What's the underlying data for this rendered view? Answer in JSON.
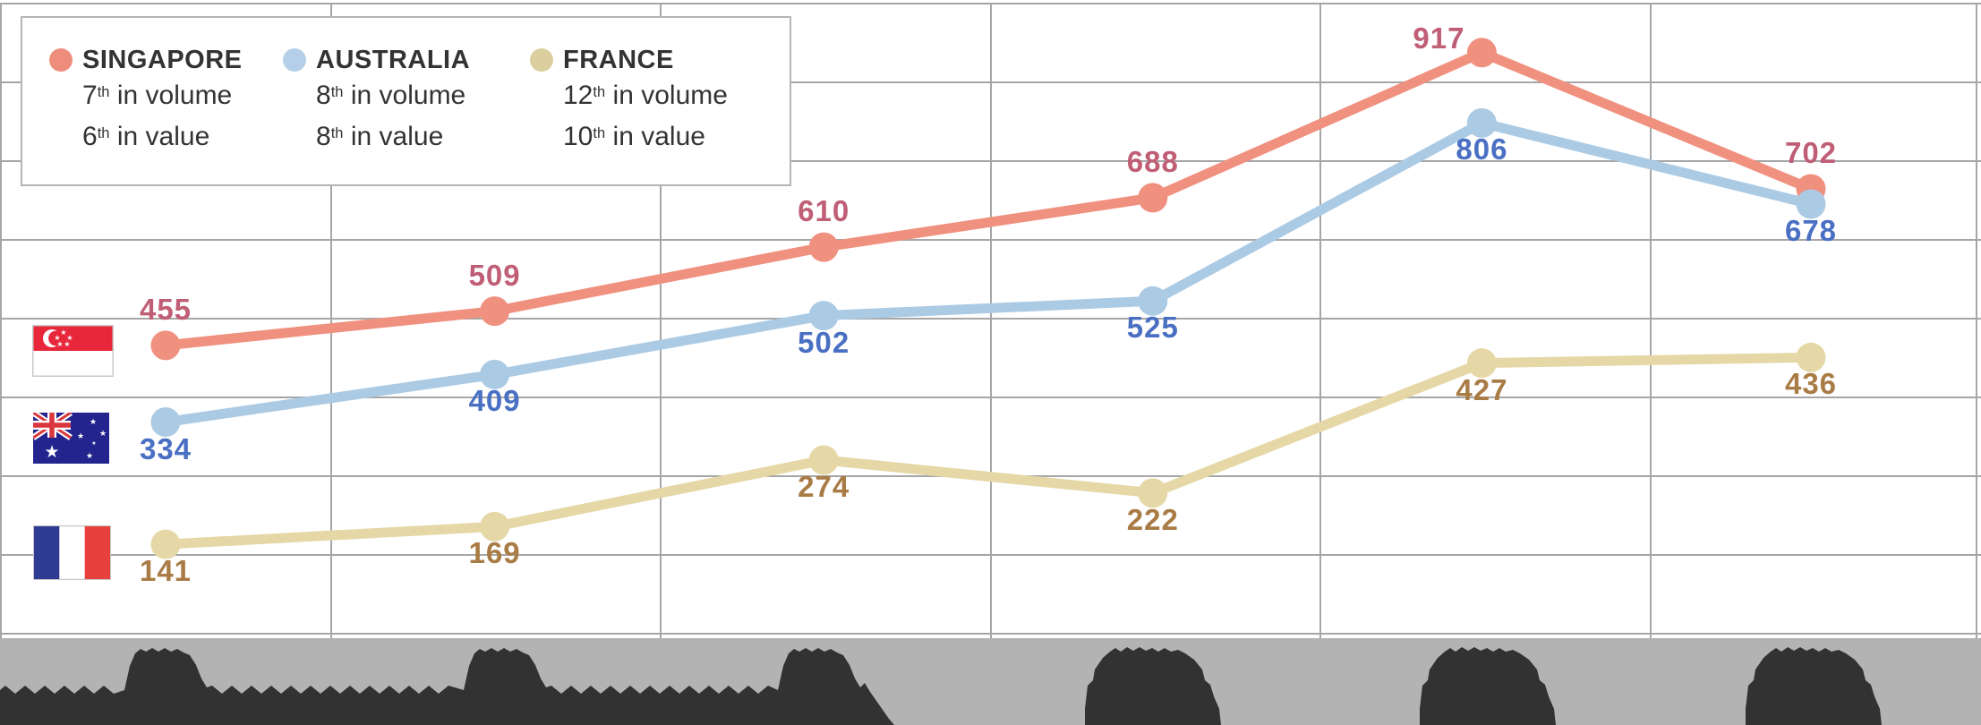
{
  "chart_data": {
    "type": "line",
    "title": "",
    "categories": [
      "",
      "",
      "",
      "",
      "",
      ""
    ],
    "x_axis": {
      "labels_visible": false,
      "note": "x-axis labels and source caption are obscured by a dark silhouette overlay at the bottom of the image"
    },
    "grid": {
      "horizontal": true,
      "vertical": true
    },
    "legend_position": "top-left",
    "series": [
      {
        "name": "SINGAPORE",
        "values": [
          455,
          509,
          610,
          688,
          917,
          702
        ],
        "line_color": "#F0907F",
        "label_color": "#C05E76",
        "label_side": "above"
      },
      {
        "name": "AUSTRALIA",
        "values": [
          334,
          409,
          502,
          525,
          806,
          678
        ],
        "line_color": "#ABCAE4",
        "label_color": "#4A70C3",
        "label_side": "below"
      },
      {
        "name": "FRANCE",
        "values": [
          141,
          169,
          274,
          222,
          427,
          436
        ],
        "line_color": "#E5D8A6",
        "label_color": "#A97B45",
        "label_side": "below"
      }
    ]
  },
  "legend": {
    "items": [
      {
        "name": "SINGAPORE",
        "dot_color": "#EF8D7C",
        "volume_rank": "7",
        "volume_sup": "th",
        "volume_text": "in volume",
        "value_rank": "6",
        "value_sup": "th",
        "value_text": "in value"
      },
      {
        "name": "AUSTRALIA",
        "dot_color": "#B4CFE7",
        "volume_rank": "8",
        "volume_sup": "th",
        "volume_text": "in volume",
        "value_rank": "8",
        "value_sup": "th",
        "value_text": "in value"
      },
      {
        "name": "FRANCE",
        "dot_color": "#DCCF9F",
        "volume_rank": "12",
        "volume_sup": "th",
        "volume_text": "in volume",
        "value_rank": "10",
        "value_sup": "th",
        "value_text": "in value"
      }
    ]
  },
  "flags": [
    {
      "country": "Singapore"
    },
    {
      "country": "Australia"
    },
    {
      "country": "France"
    }
  ],
  "colors": {
    "background": "#FFFFFF",
    "gridline": "#A6A6A6",
    "legend_border": "#B5B5B5",
    "legend_text": "#333333",
    "footer_band": "#B3B3B3",
    "footer_silhouette": "#323232"
  }
}
